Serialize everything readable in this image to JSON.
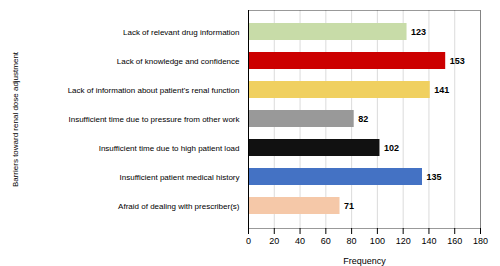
{
  "chart_data": {
    "type": "bar",
    "orientation": "horizontal",
    "categories": [
      "Afraid of dealing with prescriber(s)",
      "Insufficient patient medical history",
      "Insufficient time due to high patient load",
      "Insufficient time due to pressure from other work",
      "Lack of information about patient's renal function",
      "Lack of knowledge and confidence",
      "Lack of relevant drug information"
    ],
    "values": [
      71,
      135,
      102,
      82,
      141,
      153,
      123
    ],
    "colors": [
      "#f5c8a8",
      "#4472c4",
      "#111111",
      "#999999",
      "#f0d060",
      "#cc0000",
      "#c8dca8"
    ],
    "xlabel": "Frequency",
    "ylabel": "Barriers toward renal dose adjustment",
    "xlim": [
      0,
      180
    ],
    "xticks": [
      0,
      20,
      40,
      60,
      80,
      100,
      120,
      140,
      160,
      180
    ],
    "grid": true,
    "data_labels": true
  }
}
